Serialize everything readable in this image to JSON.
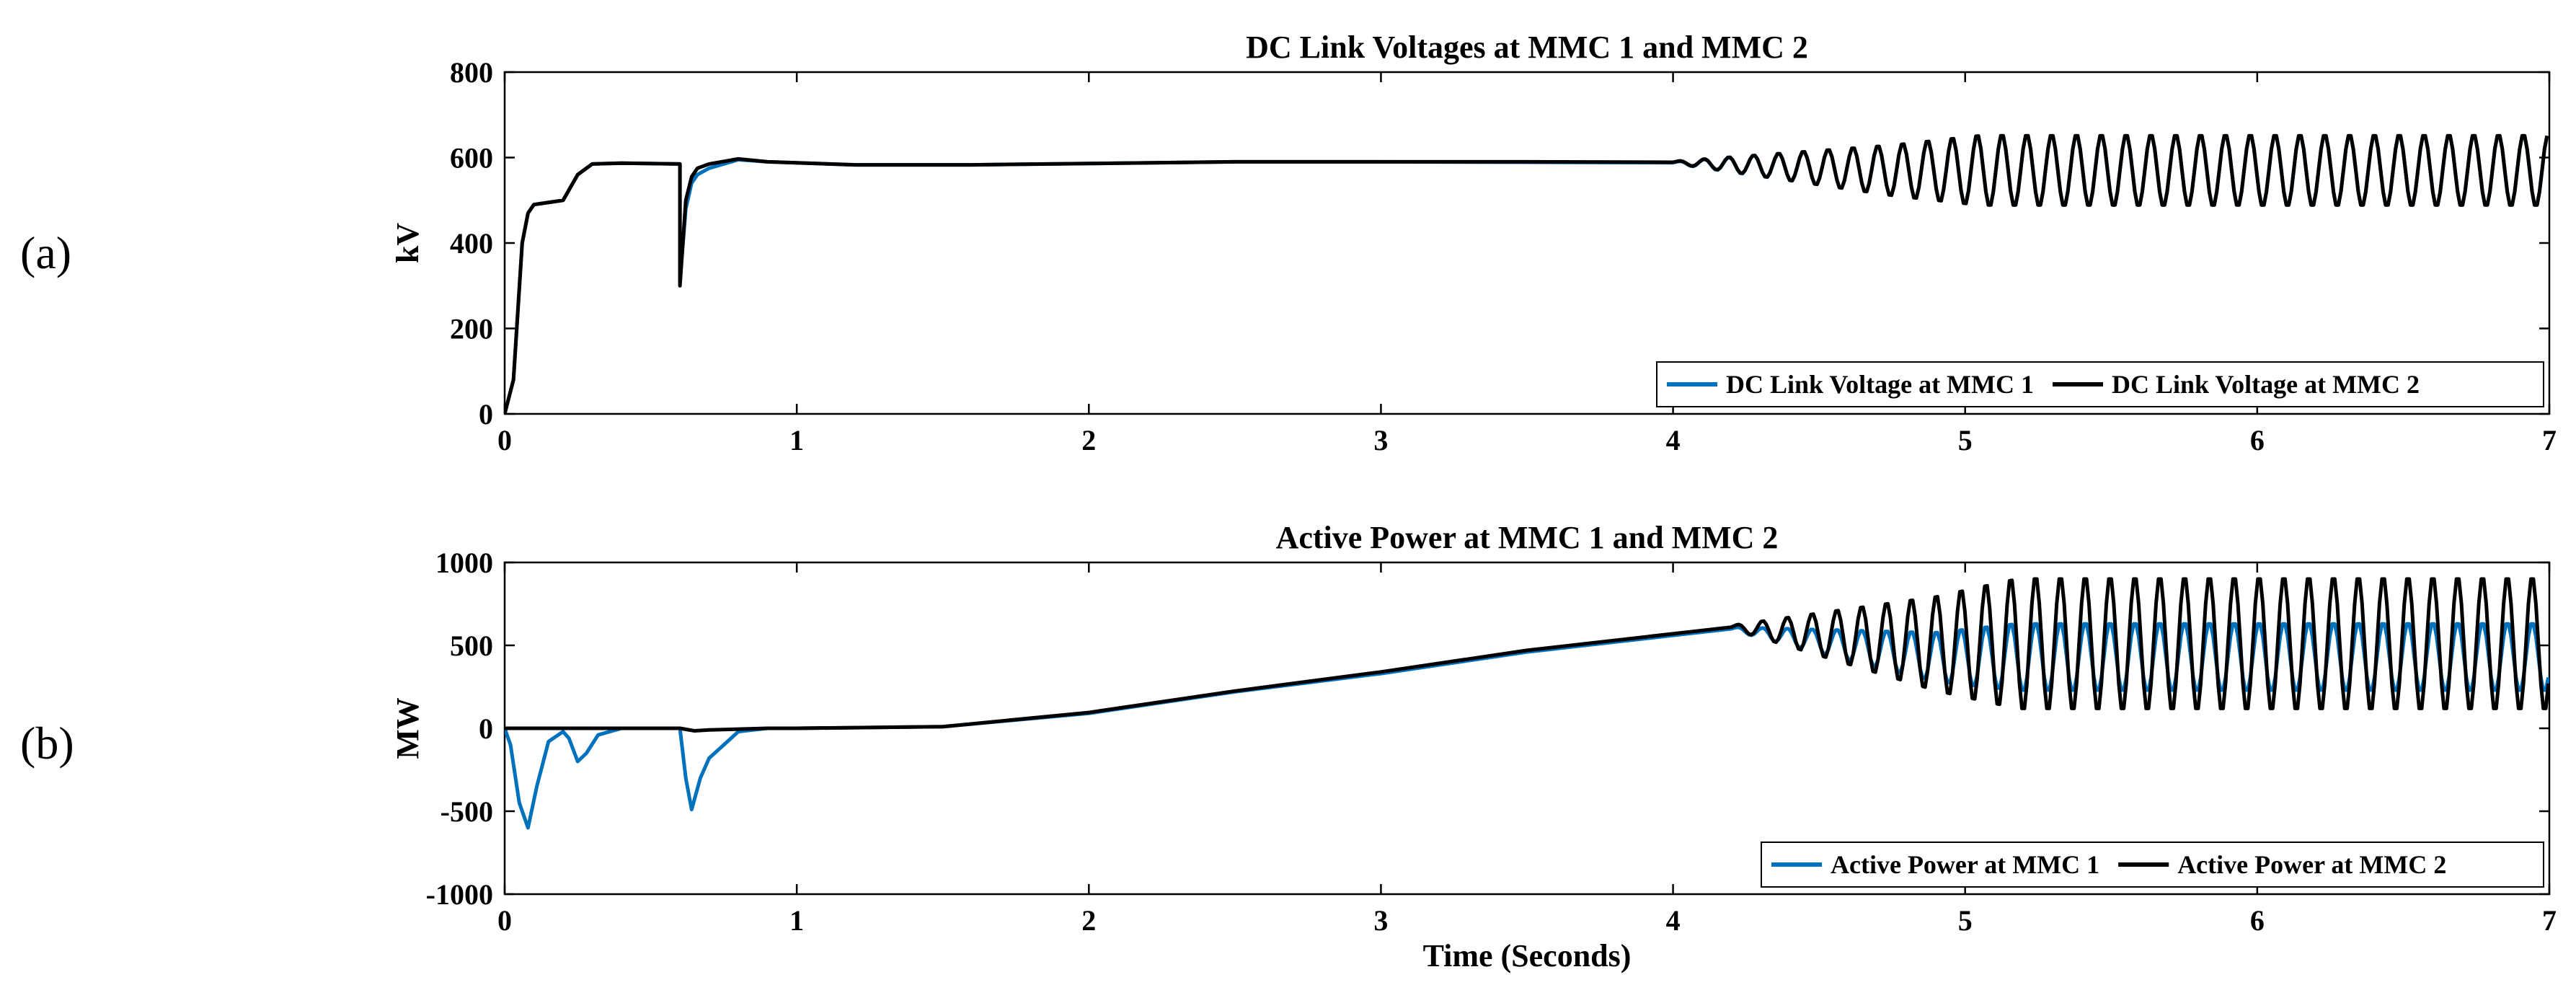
{
  "panel_labels": [
    "(a)",
    "(b)"
  ],
  "colors": {
    "mmc1": "#0072BD",
    "mmc2": "#000000",
    "axis": "#000000",
    "background": "#ffffff"
  },
  "chart_data": [
    {
      "type": "line",
      "title": "DC Link Voltages at MMC 1 and MMC 2",
      "xlabel": "",
      "ylabel": "kV",
      "xlim": [
        0,
        7
      ],
      "ylim": [
        0,
        800
      ],
      "xticks": [
        0,
        1,
        2,
        3,
        4,
        5,
        6,
        7
      ],
      "yticks": [
        0,
        200,
        400,
        600,
        800
      ],
      "legend_location": "bottom-right",
      "series": [
        {
          "name": "DC Link Voltage at MMC 1",
          "color": "#0072BD",
          "points": [
            [
              0,
              0
            ],
            [
              0.03,
              80
            ],
            [
              0.06,
              400
            ],
            [
              0.08,
              470
            ],
            [
              0.1,
              490
            ],
            [
              0.2,
              500
            ],
            [
              0.25,
              560
            ],
            [
              0.3,
              585
            ],
            [
              0.4,
              587
            ],
            [
              0.6,
              585
            ],
            [
              0.6,
              310
            ],
            [
              0.62,
              480
            ],
            [
              0.64,
              540
            ],
            [
              0.66,
              560
            ],
            [
              0.7,
              575
            ],
            [
              0.8,
              595
            ],
            [
              0.9,
              590
            ],
            [
              1.2,
              583
            ],
            [
              1.6,
              583
            ],
            [
              2.0,
              586
            ],
            [
              2.5,
              590
            ],
            [
              3.0,
              590
            ],
            [
              3.5,
              589
            ],
            [
              4.0,
              588
            ]
          ],
          "oscillation": {
            "start": 4.0,
            "end": 7.0,
            "period": 0.085,
            "center": 570,
            "amp_start": 2,
            "amp_end": 85
          }
        },
        {
          "name": "DC Link Voltage at MMC 2",
          "color": "#000000",
          "points": [
            [
              0,
              0
            ],
            [
              0.03,
              80
            ],
            [
              0.06,
              400
            ],
            [
              0.08,
              470
            ],
            [
              0.1,
              490
            ],
            [
              0.2,
              500
            ],
            [
              0.25,
              560
            ],
            [
              0.3,
              585
            ],
            [
              0.4,
              587
            ],
            [
              0.6,
              585
            ],
            [
              0.6,
              300
            ],
            [
              0.62,
              500
            ],
            [
              0.64,
              555
            ],
            [
              0.66,
              575
            ],
            [
              0.7,
              585
            ],
            [
              0.8,
              597
            ],
            [
              0.9,
              590
            ],
            [
              1.2,
              583
            ],
            [
              1.6,
              583
            ],
            [
              2.0,
              586
            ],
            [
              2.5,
              590
            ],
            [
              3.0,
              590
            ],
            [
              3.5,
              590
            ],
            [
              4.0,
              589
            ]
          ],
          "oscillation": {
            "start": 4.0,
            "end": 7.0,
            "period": 0.085,
            "center": 570,
            "amp_start": 2,
            "amp_end": 85
          }
        }
      ]
    },
    {
      "type": "line",
      "title": "Active Power at MMC 1 and MMC 2",
      "xlabel": "Time (Seconds)",
      "ylabel": "MW",
      "xlim": [
        0,
        7
      ],
      "ylim": [
        -1000,
        1000
      ],
      "xticks": [
        0,
        1,
        2,
        3,
        4,
        5,
        6,
        7
      ],
      "yticks": [
        -1000,
        -500,
        0,
        500,
        1000
      ],
      "legend_location": "bottom-right",
      "series": [
        {
          "name": "Active Power at MMC 1",
          "color": "#0072BD",
          "points": [
            [
              0,
              0
            ],
            [
              0.02,
              -100
            ],
            [
              0.05,
              -450
            ],
            [
              0.08,
              -600
            ],
            [
              0.11,
              -350
            ],
            [
              0.15,
              -80
            ],
            [
              0.2,
              -20
            ],
            [
              0.22,
              -60
            ],
            [
              0.25,
              -200
            ],
            [
              0.28,
              -150
            ],
            [
              0.32,
              -40
            ],
            [
              0.4,
              0
            ],
            [
              0.6,
              0
            ],
            [
              0.62,
              -300
            ],
            [
              0.64,
              -490
            ],
            [
              0.67,
              -300
            ],
            [
              0.7,
              -180
            ],
            [
              0.75,
              -100
            ],
            [
              0.8,
              -20
            ],
            [
              0.9,
              0
            ],
            [
              1.0,
              0
            ],
            [
              1.5,
              10
            ],
            [
              2.0,
              90
            ],
            [
              2.5,
              220
            ],
            [
              3.0,
              330
            ],
            [
              3.5,
              460
            ],
            [
              4.0,
              560
            ],
            [
              4.2,
              600
            ]
          ],
          "oscillation": {
            "start": 4.2,
            "end": 7.0,
            "period": 0.085,
            "center": 430,
            "amp_start": 10,
            "amp_end": 210
          }
        },
        {
          "name": "Active Power at MMC 2",
          "color": "#000000",
          "points": [
            [
              0,
              0
            ],
            [
              0.6,
              0
            ],
            [
              0.65,
              -15
            ],
            [
              0.7,
              -10
            ],
            [
              0.9,
              0
            ],
            [
              1.0,
              0
            ],
            [
              1.5,
              10
            ],
            [
              2.0,
              95
            ],
            [
              2.5,
              225
            ],
            [
              3.0,
              340
            ],
            [
              3.5,
              470
            ],
            [
              4.0,
              570
            ],
            [
              4.2,
              610
            ]
          ],
          "oscillation": {
            "start": 4.2,
            "end": 7.0,
            "period": 0.085,
            "center": 510,
            "amp_start": 10,
            "amp_end": 410
          }
        }
      ]
    }
  ]
}
